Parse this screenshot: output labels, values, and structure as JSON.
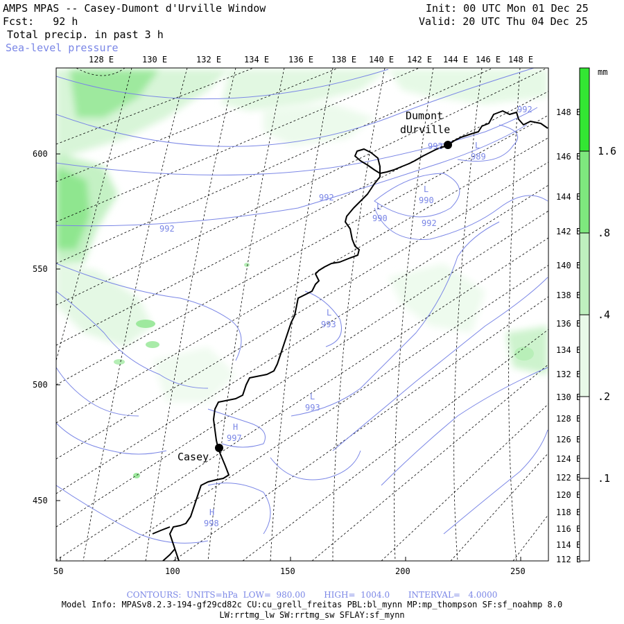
{
  "header": {
    "title": "AMPS MPAS -- Casey-Dumont d'Urville Window",
    "init": "Init: 00 UTC Mon 01 Dec 25",
    "forecast": "Fcst:   92 h",
    "valid": "Valid: 20 UTC Thu 04 Dec 25",
    "field": "Total precip. in past 3 h",
    "overlay": "Sea-level pressure"
  },
  "colors": {
    "contour": "#7a86e6",
    "precip_light": "#dff7df",
    "precip_mid": "#bff0bf",
    "precip_strong": "#7ee87e",
    "precip_max": "#33e633",
    "coast": "#000000"
  },
  "top_longitudes": [
    "128 E",
    "130 E",
    "132 E",
    "134 E",
    "136 E",
    "138 E",
    "140 E",
    "142 E",
    "144 E",
    "146 E",
    "148 E"
  ],
  "right_longitudes": [
    "148 E",
    "146 E",
    "144 E",
    "142 E",
    "140 E",
    "138 E",
    "136 E",
    "134 E",
    "132 E",
    "130 E",
    "128 E",
    "126 E",
    "124 E",
    "122 E",
    "120 E",
    "118 E",
    "116 E",
    "114 E",
    "112 E"
  ],
  "x_axis": [
    "50",
    "100",
    "150",
    "200",
    "250"
  ],
  "y_axis": [
    "600",
    "550",
    "500",
    "450"
  ],
  "colorbar": {
    "unit": "mm",
    "labels": [
      "1.6",
      ".8",
      ".4",
      ".2",
      ".1"
    ],
    "colors": [
      "#33e633",
      "#7ee87e",
      "#bff0bf",
      "#eafaea"
    ]
  },
  "stations": [
    {
      "name_line1": "Dumont",
      "name_line2": "dUrville"
    },
    {
      "name_line1": "Casey",
      "name_line2": ""
    }
  ],
  "contour_labels": [
    {
      "text": "992",
      "kind": "value"
    },
    {
      "text": "992",
      "kind": "value"
    },
    {
      "text": "992",
      "kind": "value"
    },
    {
      "text": "992",
      "kind": "value"
    },
    {
      "text": "992",
      "kind": "value"
    },
    {
      "text": "989",
      "kind": "value"
    },
    {
      "text": "L",
      "kind": "center"
    },
    {
      "text": "990",
      "kind": "value"
    },
    {
      "text": "L",
      "kind": "center"
    },
    {
      "text": "990",
      "kind": "value"
    },
    {
      "text": "L",
      "kind": "center"
    },
    {
      "text": "L",
      "kind": "center"
    },
    {
      "text": "993",
      "kind": "value"
    },
    {
      "text": "L",
      "kind": "center"
    },
    {
      "text": "993",
      "kind": "value"
    },
    {
      "text": "H",
      "kind": "center"
    },
    {
      "text": "997",
      "kind": "value"
    },
    {
      "text": "H",
      "kind": "center"
    },
    {
      "text": "998",
      "kind": "value"
    }
  ],
  "footer": {
    "contours": "CONTOURS:  UNITS=hPa  LOW=  980.00       HIGH=  1004.0       INTERVAL=   4.0000",
    "model_info": "Model Info: MPASv8.2.3-194-gf29cd82c CU:cu_grell_freitas PBL:bl_mynn MP:mp_thompson SF:sf_noahmp 8.0",
    "model_info2": "LW:rrtmg_lw SW:rrtmg_sw SFLAY:sf_mynn"
  }
}
